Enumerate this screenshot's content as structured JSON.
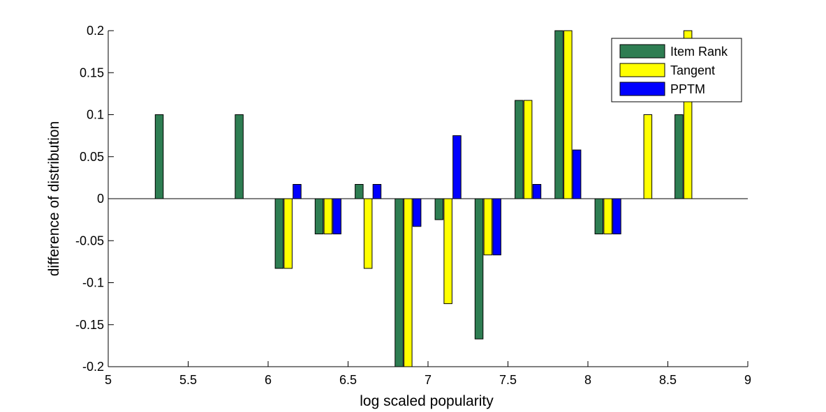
{
  "chart_data": {
    "type": "bar",
    "title": "",
    "xlabel": "log scaled popularity",
    "ylabel": "difference of distribution",
    "xlim": [
      5,
      9
    ],
    "ylim": [
      -0.2,
      0.2
    ],
    "x_ticks": [
      5,
      5.5,
      6,
      6.5,
      7,
      7.5,
      8,
      8.5,
      9
    ],
    "x_tick_labels": [
      "5",
      "5.5",
      "6",
      "6.5",
      "7",
      "7.5",
      "8",
      "8.5",
      "9"
    ],
    "y_ticks": [
      -0.2,
      -0.15,
      -0.1,
      -0.05,
      0,
      0.05,
      0.1,
      0.15,
      0.2
    ],
    "y_tick_labels": [
      "-0.2",
      "-0.15",
      "-0.1",
      "-0.05",
      "0",
      "0.05",
      "0.1",
      "0.15",
      "0.2"
    ],
    "grid": false,
    "legend_position": "top-right",
    "categories": [
      5.375,
      5.875,
      6.125,
      6.375,
      6.625,
      6.875,
      7.125,
      7.375,
      7.625,
      7.875,
      8.125,
      8.375,
      8.625
    ],
    "series": [
      {
        "name": "Item Rank",
        "color": "#2e7d52",
        "values": [
          0.1,
          0.1,
          -0.083,
          -0.042,
          0.017,
          -0.2,
          -0.025,
          -0.167,
          0.117,
          0.2,
          -0.042,
          0,
          0.1
        ]
      },
      {
        "name": "Tangent",
        "color": "#ffff00",
        "values": [
          0,
          0,
          -0.083,
          -0.042,
          -0.083,
          -0.2,
          -0.125,
          -0.067,
          0.117,
          0.2,
          -0.042,
          0.1,
          0.2
        ]
      },
      {
        "name": "PPTM",
        "color": "#0000ff",
        "values": [
          0,
          0,
          0.017,
          -0.042,
          0.017,
          -0.033,
          0.075,
          -0.067,
          0.017,
          0.058,
          -0.042,
          0,
          0
        ]
      }
    ]
  }
}
